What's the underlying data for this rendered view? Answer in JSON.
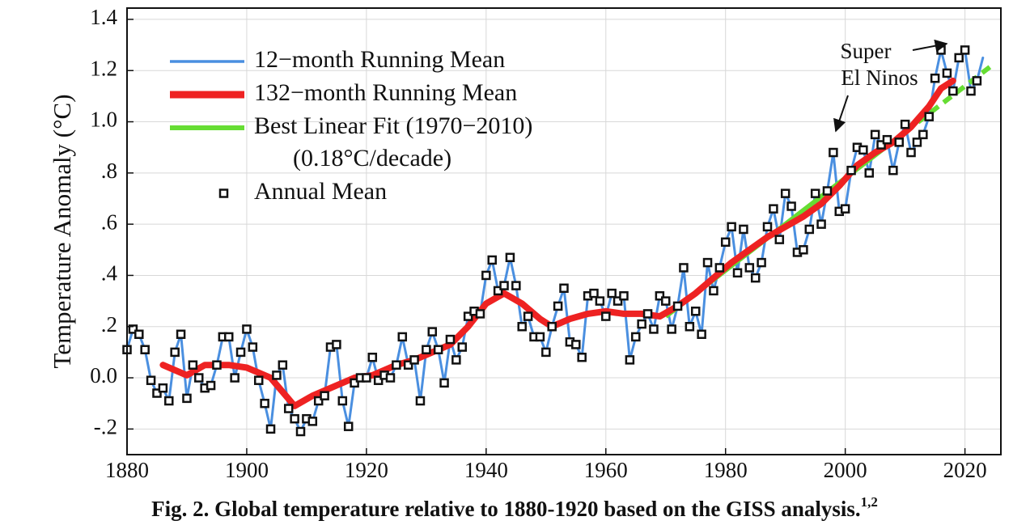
{
  "chart_data": {
    "type": "line",
    "ylabel": "Temperature Anomaly (°C)",
    "caption": "Fig. 2. Global temperature relative to 1880-1920 based on the GISS analysis.",
    "caption_superscript": "1,2",
    "annotation": [
      "Super",
      "El Ninos"
    ],
    "xlim": [
      1880,
      2026
    ],
    "ylim": [
      -0.3,
      1.444
    ],
    "xticks": [
      1880,
      1900,
      1920,
      1940,
      1960,
      1980,
      2000,
      2020
    ],
    "yticks": [
      {
        "value": -0.2,
        "label": "-.2"
      },
      {
        "value": 0,
        "label": "0.0"
      },
      {
        "value": 0.2,
        "label": ".2"
      },
      {
        "value": 0.4,
        "label": ".4"
      },
      {
        "value": 0.6,
        "label": ".6"
      },
      {
        "value": 0.8,
        "label": ".8"
      },
      {
        "value": 1.0,
        "label": "1.0"
      },
      1.2,
      1.4
    ],
    "grid": true,
    "series": [
      {
        "name": "12−month Running Mean",
        "color": "#4a8fe0",
        "style": "line",
        "x": [
          1880,
          1881,
          1882,
          1883,
          1884,
          1885,
          1886,
          1887,
          1888,
          1889,
          1890,
          1891,
          1892,
          1893,
          1894,
          1895,
          1896,
          1897,
          1898,
          1899,
          1900,
          1901,
          1902,
          1903,
          1904,
          1905,
          1906,
          1907,
          1908,
          1909,
          1910,
          1911,
          1912,
          1913,
          1914,
          1915,
          1916,
          1917,
          1918,
          1919,
          1920,
          1921,
          1922,
          1923,
          1924,
          1925,
          1926,
          1927,
          1928,
          1929,
          1930,
          1931,
          1932,
          1933,
          1934,
          1935,
          1936,
          1937,
          1938,
          1939,
          1940,
          1941,
          1942,
          1943,
          1944,
          1945,
          1946,
          1947,
          1948,
          1949,
          1950,
          1951,
          1952,
          1953,
          1954,
          1955,
          1956,
          1957,
          1958,
          1959,
          1960,
          1961,
          1962,
          1963,
          1964,
          1965,
          1966,
          1967,
          1968,
          1969,
          1970,
          1971,
          1972,
          1973,
          1974,
          1975,
          1976,
          1977,
          1978,
          1979,
          1980,
          1981,
          1982,
          1983,
          1984,
          1985,
          1986,
          1987,
          1988,
          1989,
          1990,
          1991,
          1992,
          1993,
          1994,
          1995,
          1996,
          1997,
          1998,
          1999,
          2000,
          2001,
          2002,
          2003,
          2004,
          2005,
          2006,
          2007,
          2008,
          2009,
          2010,
          2011,
          2012,
          2013,
          2014,
          2015,
          2016,
          2017,
          2018,
          2019,
          2020,
          2021,
          2022,
          2023
        ],
        "values": [
          0.11,
          0.19,
          0.17,
          0.11,
          -0.01,
          -0.06,
          -0.04,
          -0.09,
          0.1,
          0.17,
          -0.08,
          0.05,
          0.0,
          -0.04,
          -0.03,
          0.05,
          0.16,
          0.16,
          0.0,
          0.1,
          0.19,
          0.12,
          -0.01,
          -0.1,
          -0.2,
          0.01,
          0.05,
          -0.12,
          -0.16,
          -0.21,
          -0.16,
          -0.17,
          -0.09,
          -0.07,
          0.12,
          0.13,
          -0.09,
          -0.19,
          -0.02,
          0.0,
          0.0,
          0.08,
          -0.01,
          0.01,
          0.0,
          0.05,
          0.16,
          0.05,
          0.07,
          -0.09,
          0.11,
          0.18,
          0.11,
          -0.02,
          0.15,
          0.07,
          0.12,
          0.24,
          0.26,
          0.25,
          0.4,
          0.46,
          0.34,
          0.36,
          0.47,
          0.36,
          0.2,
          0.24,
          0.16,
          0.16,
          0.1,
          0.2,
          0.28,
          0.35,
          0.14,
          0.13,
          0.08,
          0.32,
          0.33,
          0.3,
          0.24,
          0.33,
          0.3,
          0.32,
          0.07,
          0.16,
          0.21,
          0.25,
          0.19,
          0.32,
          0.3,
          0.19,
          0.28,
          0.43,
          0.2,
          0.26,
          0.17,
          0.45,
          0.34,
          0.43,
          0.53,
          0.59,
          0.41,
          0.58,
          0.43,
          0.39,
          0.45,
          0.59,
          0.66,
          0.54,
          0.72,
          0.67,
          0.49,
          0.5,
          0.58,
          0.72,
          0.6,
          0.73,
          0.88,
          0.65,
          0.66,
          0.81,
          0.9,
          0.89,
          0.8,
          0.95,
          0.91,
          0.93,
          0.81,
          0.92,
          0.99,
          0.88,
          0.92,
          0.95,
          1.02,
          1.17,
          1.28,
          1.19,
          1.12,
          1.25,
          1.28,
          1.12,
          1.16,
          1.25
        ]
      },
      {
        "name": "132−month Running Mean",
        "color": "#ee2222",
        "style": "line",
        "x": [
          1886,
          1890,
          1893,
          1897,
          1900,
          1904,
          1908,
          1911,
          1915,
          1918,
          1921,
          1925,
          1928,
          1931,
          1934,
          1937,
          1940,
          1943,
          1946,
          1949,
          1951,
          1954,
          1957,
          1960,
          1963,
          1966,
          1969,
          1972,
          1975,
          1978,
          1981,
          1984,
          1987,
          1990,
          1993,
          1996,
          1999,
          2002,
          2005,
          2008,
          2011,
          2014,
          2016,
          2018
        ],
        "values": [
          0.05,
          0.01,
          0.05,
          0.05,
          0.04,
          0.0,
          -0.11,
          -0.07,
          -0.03,
          0.0,
          0.01,
          0.05,
          0.07,
          0.1,
          0.13,
          0.2,
          0.29,
          0.33,
          0.29,
          0.23,
          0.2,
          0.23,
          0.25,
          0.26,
          0.25,
          0.25,
          0.24,
          0.28,
          0.33,
          0.39,
          0.45,
          0.5,
          0.55,
          0.59,
          0.63,
          0.68,
          0.75,
          0.83,
          0.88,
          0.92,
          0.98,
          1.06,
          1.13,
          1.16
        ]
      },
      {
        "name": "Best Linear Fit (1970−2010)",
        "legend_subtext": "(0.18°C/decade)",
        "color": "#66dd33",
        "style": "fit",
        "x": [
          1970,
          2010,
          2024.5
        ],
        "values": [
          0.24,
          0.96,
          1.22
        ]
      },
      {
        "name": "Annual Mean",
        "color": "#111111",
        "style": "marker",
        "x": [
          1880,
          1881,
          1882,
          1883,
          1884,
          1885,
          1886,
          1887,
          1888,
          1889,
          1890,
          1891,
          1892,
          1893,
          1894,
          1895,
          1896,
          1897,
          1898,
          1899,
          1900,
          1901,
          1902,
          1903,
          1904,
          1905,
          1906,
          1907,
          1908,
          1909,
          1910,
          1911,
          1912,
          1913,
          1914,
          1915,
          1916,
          1917,
          1918,
          1919,
          1920,
          1921,
          1922,
          1923,
          1924,
          1925,
          1926,
          1927,
          1928,
          1929,
          1930,
          1931,
          1932,
          1933,
          1934,
          1935,
          1936,
          1937,
          1938,
          1939,
          1940,
          1941,
          1942,
          1943,
          1944,
          1945,
          1946,
          1947,
          1948,
          1949,
          1950,
          1951,
          1952,
          1953,
          1954,
          1955,
          1956,
          1957,
          1958,
          1959,
          1960,
          1961,
          1962,
          1963,
          1964,
          1965,
          1966,
          1967,
          1968,
          1969,
          1970,
          1971,
          1972,
          1973,
          1974,
          1975,
          1976,
          1977,
          1978,
          1979,
          1980,
          1981,
          1982,
          1983,
          1984,
          1985,
          1986,
          1987,
          1988,
          1989,
          1990,
          1991,
          1992,
          1993,
          1994,
          1995,
          1996,
          1997,
          1998,
          1999,
          2000,
          2001,
          2002,
          2003,
          2004,
          2005,
          2006,
          2007,
          2008,
          2009,
          2010,
          2011,
          2012,
          2013,
          2014,
          2015,
          2016,
          2017,
          2018,
          2019,
          2020,
          2021,
          2022
        ],
        "values": [
          0.11,
          0.19,
          0.17,
          0.11,
          -0.01,
          -0.06,
          -0.04,
          -0.09,
          0.1,
          0.17,
          -0.08,
          0.05,
          0.0,
          -0.04,
          -0.03,
          0.05,
          0.16,
          0.16,
          0.0,
          0.1,
          0.19,
          0.12,
          -0.01,
          -0.1,
          -0.2,
          0.01,
          0.05,
          -0.12,
          -0.16,
          -0.21,
          -0.16,
          -0.17,
          -0.09,
          -0.07,
          0.12,
          0.13,
          -0.09,
          -0.19,
          -0.02,
          0.0,
          0.0,
          0.08,
          -0.01,
          0.01,
          0.0,
          0.05,
          0.16,
          0.05,
          0.07,
          -0.09,
          0.11,
          0.18,
          0.11,
          -0.02,
          0.15,
          0.07,
          0.12,
          0.24,
          0.26,
          0.25,
          0.4,
          0.46,
          0.34,
          0.36,
          0.47,
          0.36,
          0.2,
          0.24,
          0.16,
          0.16,
          0.1,
          0.2,
          0.28,
          0.35,
          0.14,
          0.13,
          0.08,
          0.32,
          0.33,
          0.3,
          0.24,
          0.33,
          0.3,
          0.32,
          0.07,
          0.16,
          0.21,
          0.25,
          0.19,
          0.32,
          0.3,
          0.19,
          0.28,
          0.43,
          0.2,
          0.26,
          0.17,
          0.45,
          0.34,
          0.43,
          0.53,
          0.59,
          0.41,
          0.58,
          0.43,
          0.39,
          0.45,
          0.59,
          0.66,
          0.54,
          0.72,
          0.67,
          0.49,
          0.5,
          0.58,
          0.72,
          0.6,
          0.73,
          0.88,
          0.65,
          0.66,
          0.81,
          0.9,
          0.89,
          0.8,
          0.95,
          0.91,
          0.93,
          0.81,
          0.92,
          0.99,
          0.88,
          0.92,
          0.95,
          1.02,
          1.17,
          1.28,
          1.19,
          1.12,
          1.25,
          1.28,
          1.12,
          1.16
        ]
      }
    ]
  }
}
